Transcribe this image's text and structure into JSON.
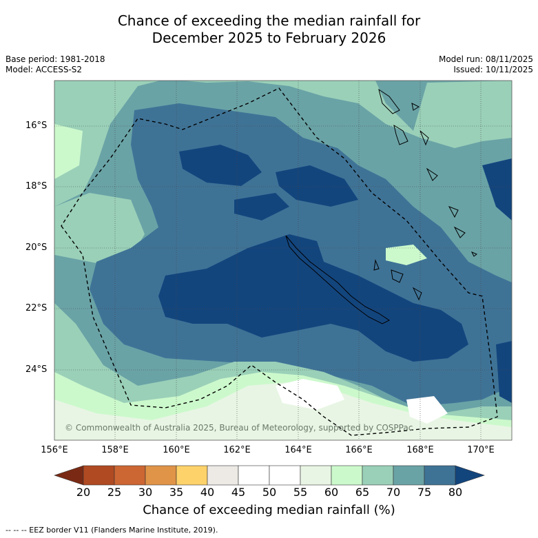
{
  "title": {
    "line1": "Chance of exceeding the median rainfall for",
    "line2": "December 2025 to February 2026"
  },
  "meta": {
    "base_period": "Base period: 1981-2018",
    "model": "Model: ACCESS-S2",
    "model_run": "Model run: 08/11/2025",
    "issued": "Issued: 10/11/2025"
  },
  "map": {
    "lat_labels": [
      "16°S",
      "18°S",
      "20°S",
      "22°S",
      "24°S"
    ],
    "lon_labels": [
      "156°E",
      "158°E",
      "160°E",
      "162°E",
      "164°E",
      "166°E",
      "168°E",
      "170°E"
    ],
    "copyright": "© Commonwealth of Australia 2025, Bureau of Meteorology, supported by COSPPac"
  },
  "colorbar": {
    "ticks": [
      "20",
      "25",
      "30",
      "35",
      "40",
      "45",
      "50",
      "55",
      "60",
      "65",
      "70",
      "75",
      "80"
    ],
    "colors": [
      "#7a2a14",
      "#b04a22",
      "#cc6633",
      "#e09448",
      "#fed26a",
      "#ede9e5",
      "#ffffff",
      "#ffffff",
      "#e8f5e4",
      "#ccf9cc",
      "#9ad0b8",
      "#6aa3a6",
      "#3f7396",
      "#13457d"
    ],
    "label": "Chance of exceeding median rainfall (%)"
  },
  "legend_note": "--  --  -- EEZ border V11 (Flanders Marine Institute, 2019)."
}
